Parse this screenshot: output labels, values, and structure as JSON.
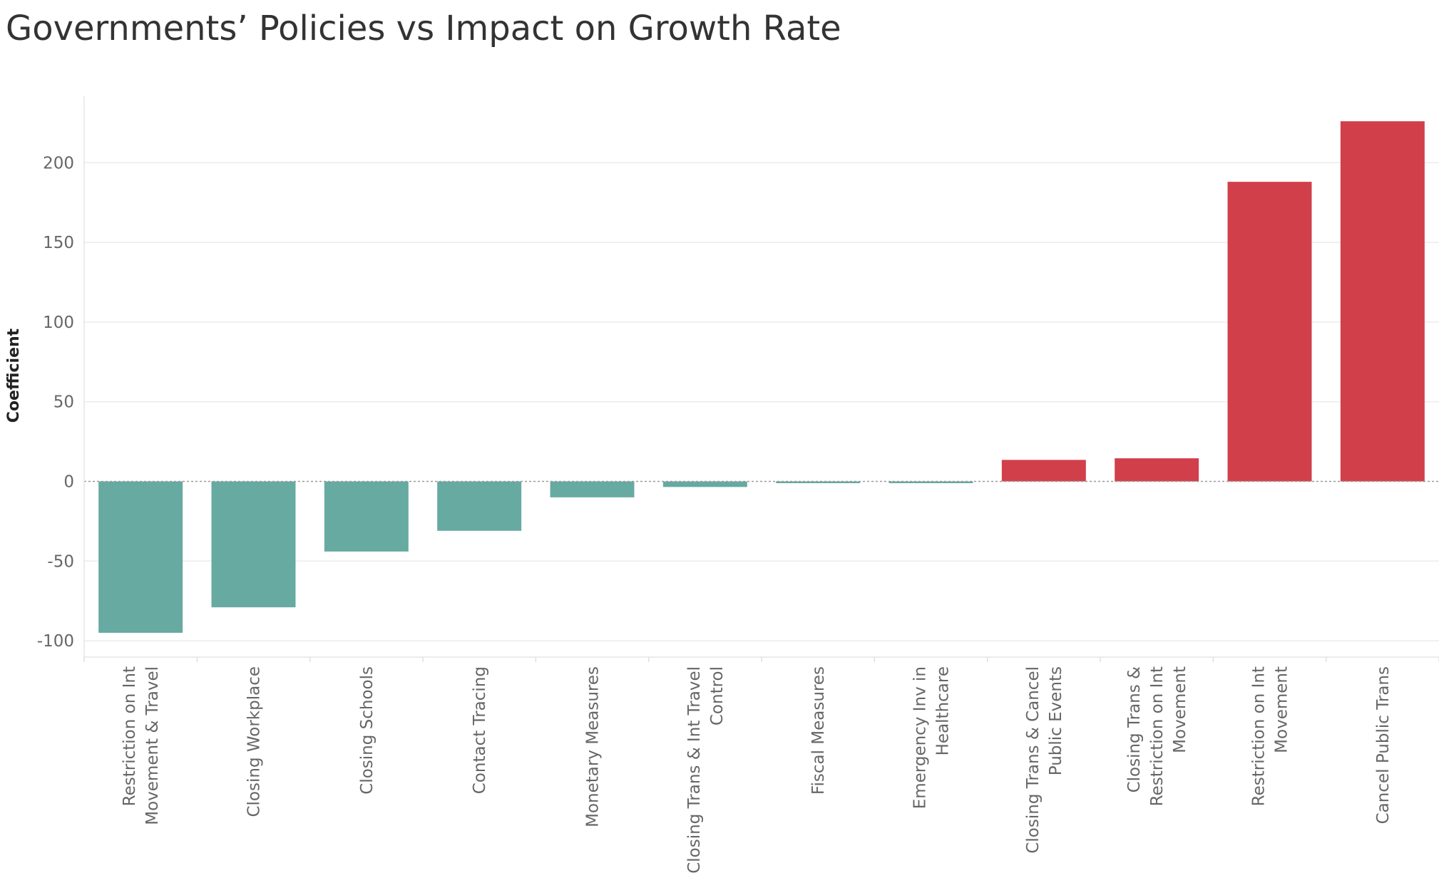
{
  "colors": {
    "negative": "#66aaa2",
    "positive": "#d13f4b"
  },
  "chart_data": {
    "type": "bar",
    "title": "Governments’ Policies vs Impact on Growth Rate",
    "xlabel": "",
    "ylabel": "Coefficient",
    "ylim": [
      -110,
      235
    ],
    "yticks": [
      -100,
      -50,
      0,
      50,
      100,
      150,
      200
    ],
    "grid": true,
    "categories": [
      [
        "Restriction on Int",
        "Movement & Travel"
      ],
      [
        "Closing Workplace"
      ],
      [
        "Closing Schools"
      ],
      [
        "Contact Tracing"
      ],
      [
        "Monetary Measures"
      ],
      [
        "Closing Trans & Int Travel",
        "Control"
      ],
      [
        "Fiscal Measures"
      ],
      [
        "Emergency Inv in",
        "Healthcare"
      ],
      [
        "Closing Trans & Cancel",
        "Public Events"
      ],
      [
        "Closing Trans &",
        "Restriction on Int",
        "Movement"
      ],
      [
        "Restriction on Int",
        "Movement"
      ],
      [
        "Cancel Public Trans"
      ]
    ],
    "values": [
      -95,
      -79,
      -44,
      -31,
      -10,
      -3.5,
      -1,
      -1,
      13.5,
      14.5,
      188,
      226
    ]
  }
}
